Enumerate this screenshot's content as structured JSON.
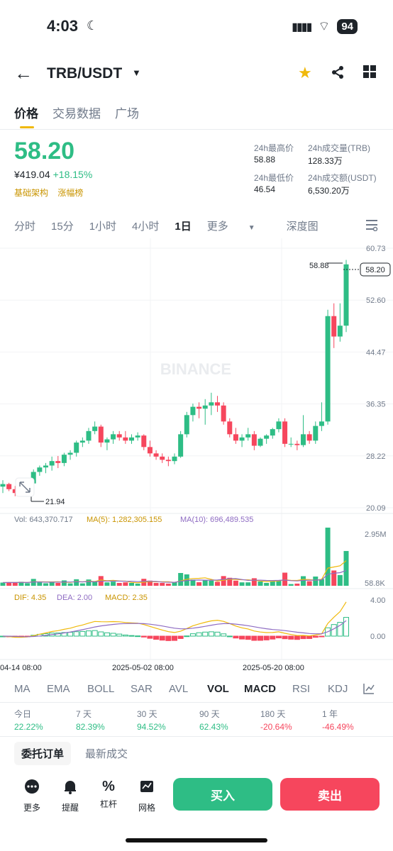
{
  "status_bar": {
    "time": "4:03",
    "battery": "94"
  },
  "header": {
    "pair": "TRB/USDT"
  },
  "tabs": [
    "价格",
    "交易数据",
    "广场"
  ],
  "price": {
    "last": "58.20",
    "fiat": "¥419.04",
    "change": "+18.15%",
    "tag1": "基础架构",
    "tag2": "涨幅榜"
  },
  "stats": {
    "high_label": "24h最高价",
    "high": "58.88",
    "vol_trb_label": "24h成交量(TRB)",
    "vol_trb": "128.33万",
    "low_label": "24h最低价",
    "low": "46.54",
    "vol_usdt_label": "24h成交额(USDT)",
    "vol_usdt": "6,530.20万"
  },
  "intervals": [
    "分时",
    "15分",
    "1小时",
    "4小时",
    "1日",
    "更多",
    "深度图"
  ],
  "chart_data": {
    "type": "candlestick",
    "y_ticks": [
      "60.73",
      "52.60",
      "44.47",
      "36.35",
      "28.22",
      "20.09"
    ],
    "ylim": [
      20.09,
      60.73
    ],
    "watermark": "BINANCE",
    "high_marker": "58.88",
    "low_marker": "21.94",
    "current_price": "58.20",
    "x_labels": [
      "04-14 08:00",
      "2025-05-02 08:00",
      "2025-05-20 08:00"
    ],
    "candles": [
      [
        23.4,
        24.4,
        22.4,
        23.8
      ],
      [
        23.8,
        24.0,
        22.7,
        23.0
      ],
      [
        23.0,
        23.5,
        21.9,
        22.4
      ],
      [
        22.4,
        23.6,
        22.1,
        23.4
      ],
      [
        23.4,
        24.2,
        22.9,
        23.9
      ],
      [
        23.9,
        26.1,
        23.7,
        25.7
      ],
      [
        25.7,
        26.7,
        25.1,
        26.4
      ],
      [
        26.4,
        27.1,
        25.5,
        26.7
      ],
      [
        26.7,
        28.1,
        25.9,
        27.4
      ],
      [
        27.4,
        28.2,
        26.3,
        27.1
      ],
      [
        27.1,
        28.7,
        26.6,
        28.4
      ],
      [
        28.4,
        29.1,
        27.6,
        28.7
      ],
      [
        28.7,
        30.6,
        28.1,
        30.3
      ],
      [
        30.3,
        31.1,
        29.6,
        30.6
      ],
      [
        30.6,
        32.6,
        30.1,
        32.1
      ],
      [
        32.1,
        33.6,
        31.6,
        32.8
      ],
      [
        32.8,
        33.1,
        29.6,
        30.3
      ],
      [
        30.3,
        31.1,
        29.1,
        30.8
      ],
      [
        30.8,
        32.1,
        30.1,
        31.6
      ],
      [
        31.6,
        32.1,
        30.6,
        31.1
      ],
      [
        31.1,
        32.1,
        30.1,
        30.6
      ],
      [
        30.6,
        31.6,
        30.1,
        31.1
      ],
      [
        31.1,
        31.9,
        30.6,
        31.4
      ],
      [
        31.4,
        31.6,
        29.1,
        29.6
      ],
      [
        29.6,
        30.6,
        28.1,
        28.6
      ],
      [
        28.6,
        29.1,
        27.6,
        28.1
      ],
      [
        28.1,
        28.6,
        27.1,
        27.6
      ],
      [
        27.6,
        28.1,
        26.6,
        27.4
      ],
      [
        27.4,
        28.6,
        26.9,
        28.1
      ],
      [
        28.1,
        32.1,
        27.9,
        31.6
      ],
      [
        31.6,
        35.1,
        31.1,
        34.6
      ],
      [
        34.6,
        36.4,
        33.6,
        35.9
      ],
      [
        35.9,
        36.6,
        34.1,
        35.6
      ],
      [
        35.6,
        37.1,
        33.1,
        36.1
      ],
      [
        36.1,
        38.1,
        34.6,
        36.6
      ],
      [
        36.6,
        37.6,
        35.1,
        36.1
      ],
      [
        36.1,
        36.6,
        33.1,
        33.6
      ],
      [
        33.6,
        34.1,
        31.1,
        31.6
      ],
      [
        31.6,
        32.6,
        30.1,
        30.6
      ],
      [
        30.6,
        31.6,
        29.6,
        31.1
      ],
      [
        31.1,
        32.6,
        30.6,
        31.6
      ],
      [
        31.6,
        32.1,
        29.1,
        29.8
      ],
      [
        29.8,
        31.1,
        29.6,
        30.9
      ],
      [
        30.9,
        31.6,
        30.1,
        31.4
      ],
      [
        31.4,
        32.6,
        30.9,
        32.4
      ],
      [
        32.4,
        34.1,
        31.9,
        33.6
      ],
      [
        33.6,
        34.1,
        29.6,
        30.1
      ],
      [
        30.1,
        31.1,
        29.6,
        30.1
      ],
      [
        30.1,
        30.6,
        29.1,
        29.9
      ],
      [
        29.9,
        34.6,
        29.6,
        31.6
      ],
      [
        31.6,
        32.1,
        30.1,
        30.6
      ],
      [
        30.6,
        33.6,
        30.1,
        32.9
      ],
      [
        32.9,
        36.6,
        32.1,
        33.6
      ],
      [
        33.6,
        51.1,
        33.1,
        50.1
      ],
      [
        50.1,
        52.1,
        45.1,
        46.9
      ],
      [
        46.9,
        52.1,
        46.1,
        48.6
      ],
      [
        48.6,
        58.9,
        47.6,
        58.2
      ]
    ],
    "volume_label": "Vol: 643,370.717",
    "ma5_label": "MA(5): 1,282,305.155",
    "ma10_label": "MA(10): 696,489.535",
    "volume_ticks": [
      "2.95M",
      "58.8K"
    ],
    "macd": {
      "dif_label": "DIF: 4.35",
      "dea_label": "DEA: 2.00",
      "macd_label": "MACD: 2.35",
      "ticks": [
        "4.00",
        "0.00"
      ]
    }
  },
  "indicators": [
    "MA",
    "EMA",
    "BOLL",
    "SAR",
    "AVL",
    "VOL",
    "MACD",
    "RSI",
    "KDJ"
  ],
  "performance": [
    {
      "label": "今日",
      "value": "22.22%"
    },
    {
      "label": "7 天",
      "value": "82.39%"
    },
    {
      "label": "30 天",
      "value": "94.52%"
    },
    {
      "label": "90 天",
      "value": "62.43%"
    },
    {
      "label": "180 天",
      "value": "-20.64%"
    },
    {
      "label": "1 年",
      "value": "-46.49%"
    }
  ],
  "order_tabs": [
    "委托订单",
    "最新成交"
  ],
  "bottom_nav": [
    "更多",
    "提醒",
    "杠杆",
    "网格"
  ],
  "actions": {
    "buy": "买入",
    "sell": "卖出"
  },
  "colors": {
    "up": "#2ebd85",
    "down": "#f6465d",
    "accent": "#f0b90b",
    "muted": "#707a8a"
  }
}
